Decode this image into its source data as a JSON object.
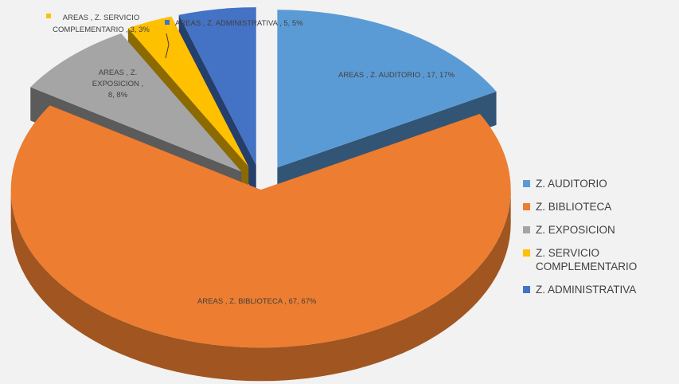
{
  "chart_data": {
    "type": "pie",
    "title": "",
    "categories": [
      "Z. AUDITORIO",
      "Z. BIBLIOTECA",
      "Z. EXPOSICION",
      "Z. SERVICIO COMPLEMENTARIO",
      "Z. ADMINISTRATIVA"
    ],
    "series": [
      {
        "values": [
          17,
          67,
          8,
          3,
          5
        ],
        "data_labels": [
          "AREAS , Z. AUDITORIO , 17, 17%",
          "AREAS , Z. BIBLIOTECA , 67, 67%",
          "AREAS , Z. EXPOSICION , 8, 8%",
          "AREAS , Z. SERVICIO COMPLEMENTARIO , 3, 3%",
          "AREAS , Z. ADMINISTRATIVA , 5, 5%"
        ]
      }
    ],
    "colors": [
      "#5b9bd5",
      "#ed7d31",
      "#a5a5a5",
      "#ffc000",
      "#4472c4"
    ],
    "exploded": true,
    "three_d": true,
    "legend_position": "right"
  },
  "legend": {
    "items": [
      {
        "label": "Z. AUDITORIO",
        "color": "#5b9bd5"
      },
      {
        "label": "Z. BIBLIOTECA",
        "color": "#ed7d31"
      },
      {
        "label": "Z. EXPOSICION",
        "color": "#a5a5a5"
      },
      {
        "label": "Z. SERVICIO COMPLEMENTARIO",
        "color": "#ffc000"
      },
      {
        "label": "Z. ADMINISTRATIVA",
        "color": "#4472c4"
      }
    ]
  },
  "labels": {
    "auditorio": "AREAS , Z. AUDITORIO , 17, 17%",
    "biblioteca": "AREAS , Z. BIBLIOTECA , 67, 67%",
    "exposicion_1": "AREAS , Z.",
    "exposicion_2": "EXPOSICION ,",
    "exposicion_3": "8, 8%",
    "servicio_1": "AREAS , Z. SERVICIO",
    "servicio_2": "COMPLEMENTARIO , 3, 3%",
    "administrativa": "AREAS , Z. ADMINISTRATIVA , 5, 5%"
  }
}
